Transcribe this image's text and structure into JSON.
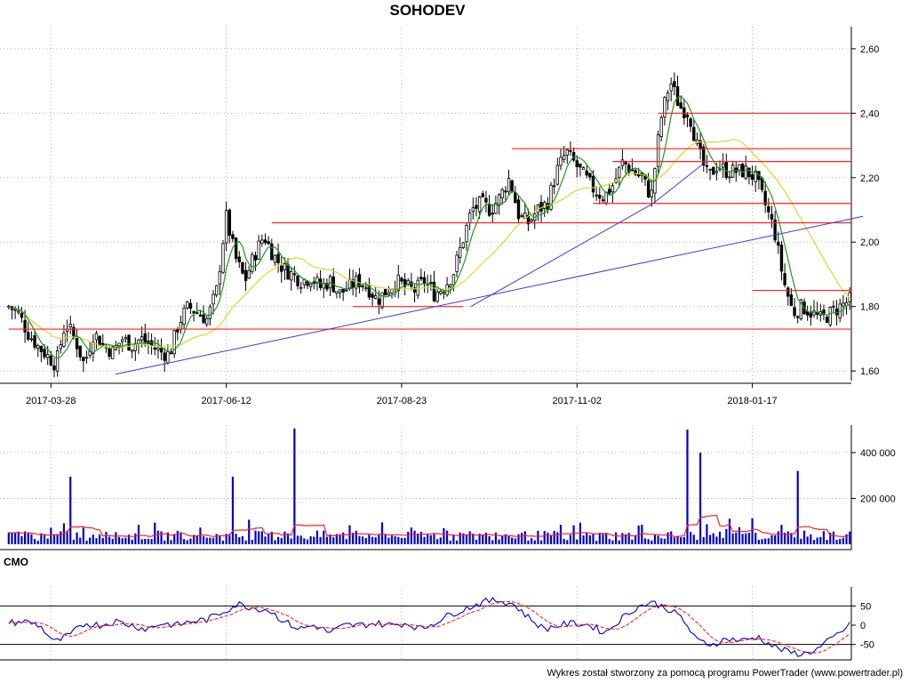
{
  "title": "SOHODEV",
  "footer": "Wykres został stworzony za pomocą programu PowerTrader (www.powertrader.pl)",
  "colors": {
    "price": "#000000",
    "fast_ma": "#1a9a1a",
    "slow_ma": "#d8d830",
    "support_lines": "#ff2020",
    "trend_lines": "#3a3ae0",
    "volume": "#0000cc",
    "volume_ma": "#ff2020",
    "cmo": "#0000cc",
    "cmo_signal": "#ff2020"
  },
  "chart_data": [
    {
      "type": "candlestick",
      "title": "SOHODEV",
      "x_tick_labels": [
        "2017-03-28",
        "2017-06-12",
        "2017-08-23",
        "2017-11-02",
        "2018-01-17"
      ],
      "y_tick_labels": [
        "1,60",
        "1,80",
        "2,00",
        "2,20",
        "2,40",
        "2,60"
      ],
      "ylim": [
        1.57,
        2.63
      ],
      "grid": true,
      "approx_close": [
        1.8,
        1.78,
        1.72,
        1.68,
        1.65,
        1.62,
        1.75,
        1.7,
        1.62,
        1.72,
        1.68,
        1.66,
        1.7,
        1.68,
        1.7,
        1.68,
        1.66,
        1.65,
        1.75,
        1.8,
        1.78,
        1.76,
        1.85,
        2.08,
        1.95,
        1.88,
        1.96,
        2.02,
        1.96,
        1.92,
        1.9,
        1.88,
        1.89,
        1.86,
        1.88,
        1.84,
        1.86,
        1.88,
        1.86,
        1.82,
        1.85,
        1.88,
        1.86,
        1.85,
        1.88,
        1.84,
        1.86,
        1.9,
        2.0,
        2.1,
        2.12,
        2.1,
        2.14,
        2.2,
        2.08,
        2.06,
        2.1,
        2.12,
        2.22,
        2.28,
        2.24,
        2.2,
        2.16,
        2.14,
        2.18,
        2.25,
        2.22,
        2.2,
        2.14,
        2.38,
        2.5,
        2.42,
        2.4,
        2.28,
        2.2,
        2.24,
        2.22,
        2.22,
        2.22,
        2.2,
        2.12,
        2.04,
        1.88,
        1.78,
        1.8,
        1.78,
        1.76,
        1.78,
        1.8,
        1.82
      ],
      "horizontal_levels": [
        2.4,
        2.29,
        2.25,
        2.12,
        2.06,
        1.85,
        1.8,
        1.73
      ],
      "trend_lines": [
        {
          "from": [
            "2017-04-25",
            1.59
          ],
          "to": [
            "2018-03-06",
            2.08
          ]
        },
        {
          "from": [
            "2017-09-20",
            1.8
          ],
          "to": [
            "2017-12-05",
            2.12
          ]
        },
        {
          "from": [
            "2017-12-05",
            2.12
          ],
          "to": [
            "2017-12-28",
            2.25
          ]
        }
      ]
    },
    {
      "type": "bar",
      "series_name": "volume",
      "y_tick_labels": [
        "200 000",
        "400 000"
      ],
      "ylim": [
        0,
        520000
      ],
      "approx_peaks": [
        {
          "date": "2017-04-05",
          "value": 295000
        },
        {
          "date": "2017-06-15",
          "value": 295000
        },
        {
          "date": "2017-07-10",
          "value": 505000
        },
        {
          "date": "2017-12-20",
          "value": 500000
        },
        {
          "date": "2017-12-25",
          "value": 400000
        },
        {
          "date": "2018-02-05",
          "value": 320000
        }
      ]
    },
    {
      "type": "line",
      "title": "CMO",
      "y_tick_labels": [
        "50",
        "0",
        "-50"
      ],
      "ylim": [
        -90,
        90
      ],
      "reference_levels": [
        50,
        -50
      ],
      "approx_values": [
        5,
        10,
        0,
        -45,
        -25,
        5,
        0,
        10,
        0,
        -10,
        5,
        0,
        10,
        15,
        35,
        55,
        45,
        40,
        10,
        -10,
        0,
        -20,
        0,
        0,
        5,
        0,
        5,
        -10,
        10,
        30,
        45,
        60,
        65,
        55,
        20,
        -10,
        0,
        5,
        0,
        -20,
        15,
        45,
        60,
        45,
        20,
        -40,
        -50,
        -35,
        -40,
        -30,
        -55,
        -70,
        -75,
        -60,
        -30,
        0
      ]
    }
  ]
}
